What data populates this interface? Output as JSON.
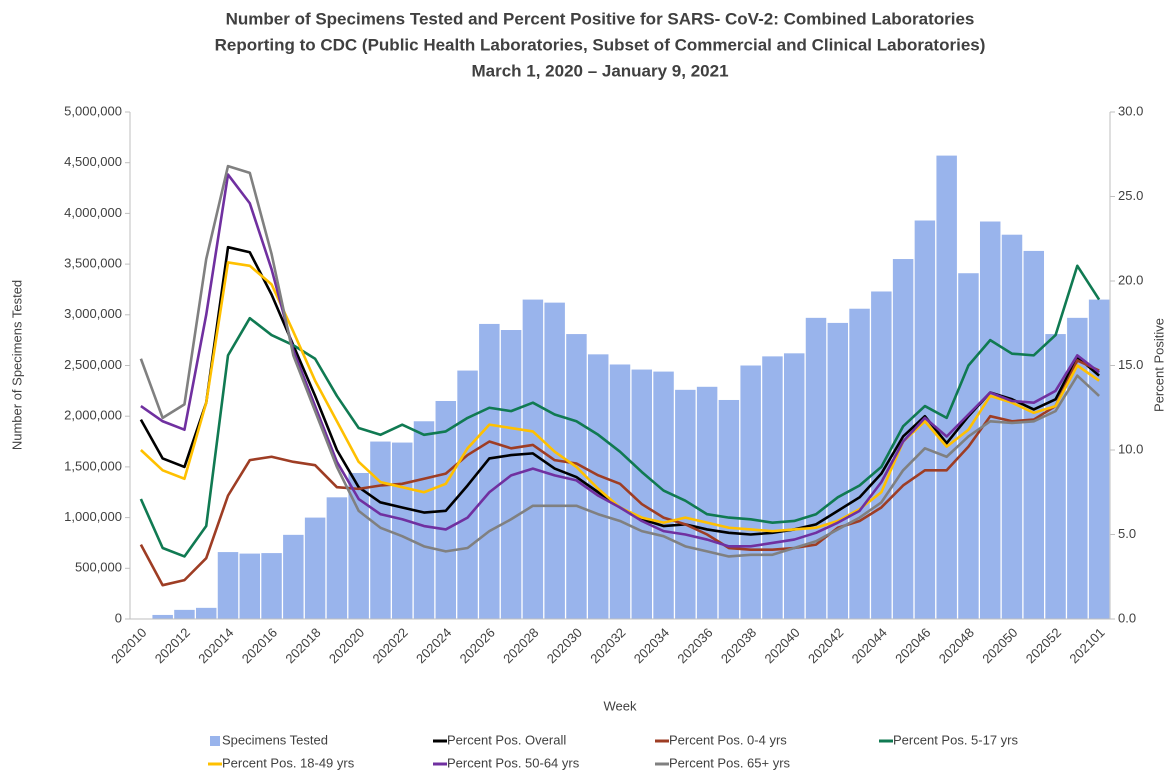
{
  "chart_data": {
    "type": "bar",
    "title": [
      "Number of Specimens Tested and Percent Positive for SARS- CoV-2: Combined Laboratories",
      "Reporting to CDC (Public Health Laboratories, Subset of Commercial and Clinical Laboratories)",
      "March 1, 2020 – January 9, 2021"
    ],
    "x_label": "Week",
    "y_label": "Number of Specimens Tested",
    "y2_label": "Percent Positive",
    "categories": [
      "202010",
      null,
      "202012",
      null,
      "202014",
      null,
      "202016",
      null,
      "202018",
      null,
      "202020",
      null,
      "202022",
      null,
      "202024",
      null,
      "202026",
      null,
      "202028",
      null,
      "202030",
      null,
      "202032",
      null,
      "202034",
      null,
      "202036",
      null,
      "202038",
      null,
      "202040",
      null,
      "202042",
      null,
      "202044",
      null,
      "202046",
      null,
      "202048",
      null,
      "202050",
      null,
      "202052",
      null,
      "202101"
    ],
    "ylim": [
      0,
      5000000
    ],
    "yticks": [
      0,
      {
        "value": 500000,
        "label": "500,000"
      },
      {
        "value": 1000000,
        "label": "1,000,000"
      },
      {
        "value": 1500000,
        "label": "1,500,000"
      },
      {
        "value": 2000000,
        "label": "2,000,000"
      },
      {
        "value": 2500000,
        "label": "2,500,000"
      },
      {
        "value": 3000000,
        "label": "3,000,000"
      },
      {
        "value": 3500000,
        "label": "3,500,000"
      },
      {
        "value": 4000000,
        "label": "4,000,000"
      },
      {
        "value": 4500000,
        "label": "4,500,000"
      },
      {
        "value": 5000000,
        "label": "5,000,000"
      }
    ],
    "y2lim": [
      0,
      30
    ],
    "y2ticks": [
      {
        "value": 0,
        "label": "0.0"
      },
      {
        "value": 5,
        "label": "5.0"
      },
      {
        "value": 10,
        "label": "10.0"
      },
      {
        "value": 15,
        "label": "15.0"
      },
      {
        "value": 20,
        "label": "20.0"
      },
      {
        "value": 25,
        "label": "25.0"
      },
      {
        "value": 30,
        "label": "30.0"
      }
    ],
    "grid": false,
    "series": [
      {
        "name": "Specimens Tested",
        "type": "bar",
        "color": "#99b4ec",
        "values": [
          5000,
          40000,
          90000,
          110000,
          660000,
          645000,
          650000,
          830000,
          1000000,
          1200000,
          1440000,
          1750000,
          1740000,
          1950000,
          2150000,
          2450000,
          2910000,
          2850000,
          3150000,
          3120000,
          2810000,
          2610000,
          2510000,
          2460000,
          2440000,
          2260000,
          2290000,
          2160000,
          2500000,
          2590000,
          2620000,
          2970000,
          2920000,
          3060000,
          3230000,
          3550000,
          3930000,
          4570000,
          3410000,
          3920000,
          3790000,
          3630000,
          2810000,
          2970000,
          3150000
        ]
      },
      {
        "name": "Percent Pos. Overall",
        "type": "line",
        "axis": "y2",
        "color": "#000000",
        "values": [
          11.8,
          9.5,
          9.0,
          12.8,
          22.0,
          21.7,
          19.2,
          16.2,
          13.2,
          10.0,
          7.8,
          6.9,
          6.6,
          6.3,
          6.4,
          7.9,
          9.5,
          9.7,
          9.8,
          8.9,
          8.4,
          7.5,
          6.6,
          5.9,
          5.5,
          5.6,
          5.3,
          5.1,
          5.0,
          5.1,
          5.3,
          5.6,
          6.4,
          7.2,
          8.6,
          10.8,
          12.0,
          10.4,
          12.0,
          13.4,
          13.0,
          12.4,
          13.0,
          15.5,
          14.4
        ]
      },
      {
        "name": "Percent Pos. 0-4 yrs",
        "type": "line",
        "axis": "y2",
        "color": "#9e3d24",
        "values": [
          4.4,
          2.0,
          2.3,
          3.6,
          7.3,
          9.4,
          9.6,
          9.3,
          9.1,
          7.8,
          7.7,
          7.9,
          8.0,
          8.3,
          8.6,
          9.7,
          10.5,
          10.1,
          10.3,
          9.4,
          9.2,
          8.5,
          8.0,
          6.8,
          6.0,
          5.6,
          5.0,
          4.2,
          4.1,
          4.1,
          4.2,
          4.4,
          5.4,
          5.8,
          6.6,
          7.9,
          8.8,
          8.8,
          10.2,
          12.0,
          11.7,
          11.8,
          12.6,
          15.3,
          14.7
        ]
      },
      {
        "name": "Percent Pos. 5-17 yrs",
        "type": "line",
        "axis": "y2",
        "color": "#107a52",
        "values": [
          7.1,
          4.2,
          3.7,
          5.5,
          15.6,
          17.8,
          16.8,
          16.2,
          15.4,
          13.2,
          11.3,
          10.9,
          11.5,
          10.9,
          11.1,
          11.9,
          12.5,
          12.3,
          12.8,
          12.1,
          11.7,
          10.9,
          9.9,
          8.7,
          7.6,
          7.0,
          6.2,
          6.0,
          5.9,
          5.7,
          5.8,
          6.2,
          7.2,
          7.9,
          9.0,
          11.4,
          12.6,
          11.9,
          15.0,
          16.5,
          15.7,
          15.6,
          16.8,
          20.9,
          18.9
        ]
      },
      {
        "name": "Percent Pos. 18-49 yrs",
        "type": "line",
        "axis": "y2",
        "color": "#ffc000",
        "values": [
          10.0,
          8.8,
          8.3,
          12.8,
          21.1,
          20.9,
          19.8,
          17.0,
          14.1,
          11.7,
          9.3,
          8.1,
          7.8,
          7.5,
          8.0,
          10.1,
          11.5,
          11.3,
          11.1,
          9.9,
          9.0,
          7.7,
          6.6,
          6.0,
          5.7,
          6.0,
          5.7,
          5.4,
          5.3,
          5.2,
          5.3,
          5.4,
          5.8,
          6.5,
          7.5,
          10.5,
          11.7,
          10.2,
          11.2,
          13.2,
          12.8,
          12.2,
          12.6,
          15.0,
          14.1
        ]
      },
      {
        "name": "Percent Pos. 50-64 yrs",
        "type": "line",
        "axis": "y2",
        "color": "#7030a0",
        "values": [
          12.6,
          11.7,
          11.2,
          18.0,
          26.3,
          24.6,
          20.7,
          15.9,
          12.6,
          9.3,
          7.1,
          6.2,
          5.9,
          5.5,
          5.3,
          6.0,
          7.5,
          8.5,
          8.9,
          8.5,
          8.2,
          7.3,
          6.6,
          5.8,
          5.2,
          5.0,
          4.7,
          4.3,
          4.3,
          4.5,
          4.7,
          5.1,
          5.7,
          6.4,
          8.1,
          10.5,
          11.9,
          10.8,
          12.1,
          13.4,
          12.9,
          12.8,
          13.5,
          15.6,
          14.6
        ]
      },
      {
        "name": "Percent Pos. 65+ yrs",
        "type": "line",
        "axis": "y2",
        "color": "#808080",
        "values": [
          15.4,
          11.9,
          12.7,
          21.3,
          26.8,
          26.4,
          21.6,
          15.6,
          12.3,
          9.0,
          6.4,
          5.4,
          4.9,
          4.3,
          4.0,
          4.2,
          5.2,
          5.9,
          6.7,
          6.7,
          6.7,
          6.2,
          5.8,
          5.2,
          4.9,
          4.3,
          4.0,
          3.7,
          3.8,
          3.8,
          4.2,
          4.6,
          5.3,
          6.0,
          6.9,
          8.8,
          10.1,
          9.6,
          10.8,
          11.7,
          11.6,
          11.7,
          12.3,
          14.4,
          13.2
        ]
      }
    ]
  }
}
